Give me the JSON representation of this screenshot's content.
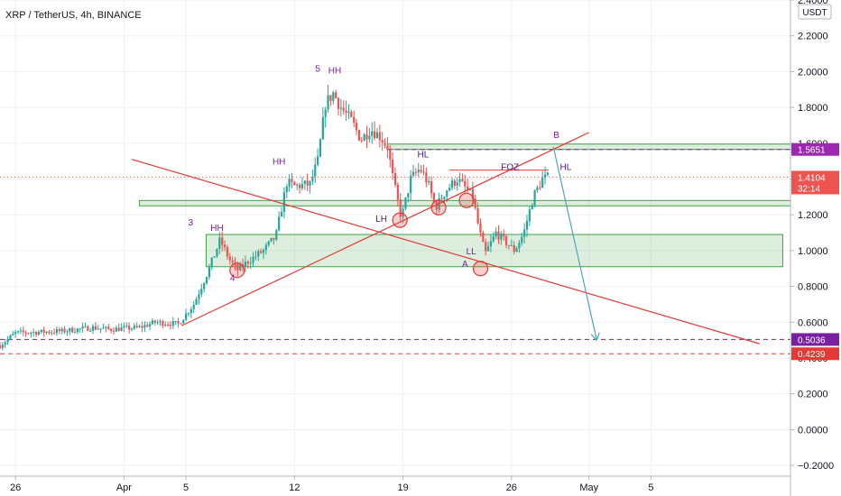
{
  "chart_data": {
    "type": "candlestick",
    "title": "XRP / TetherUS, 4h, BINANCE",
    "currency_label": "USDT",
    "x_axis": {
      "tick_labels": [
        "26",
        "Apr",
        "5",
        "12",
        "19",
        "26",
        "May",
        "5"
      ],
      "tick_days": [
        -6,
        1,
        5,
        12,
        19,
        26,
        31,
        35
      ],
      "range_days": [
        -7,
        44
      ]
    },
    "y_axis": {
      "ylim": [
        -0.26,
        2.4
      ],
      "ticks": [
        -0.2,
        0.0,
        0.2,
        0.4,
        0.6,
        0.8,
        1.0,
        1.2,
        1.4,
        1.6,
        1.8,
        2.0,
        2.2,
        2.4
      ],
      "tick_labels": [
        "−0.2000",
        "0.0000",
        "0.2000",
        "0.4000",
        "0.6000",
        "0.8000",
        "1.0000",
        "1.2000",
        "1.4000",
        "1.6000",
        "1.8000",
        "2.0000",
        "2.2000",
        "2.4000"
      ]
    },
    "price_tags": [
      {
        "label": "1.5651",
        "value": 1.5651,
        "color": "#9c27b0"
      },
      {
        "label": "1.4104",
        "value": 1.4104,
        "color": "#ef5350",
        "sub": "32:14"
      },
      {
        "label": "0.5036",
        "value": 0.5036,
        "color": "#7b1fa2"
      },
      {
        "label": "0.4239",
        "value": 0.4239,
        "color": "#e53935"
      }
    ],
    "price_path": [
      [
        -7.0,
        0.47
      ],
      [
        -6.0,
        0.54
      ],
      [
        -3.0,
        0.55
      ],
      [
        -1.0,
        0.57
      ],
      [
        0.0,
        0.56
      ],
      [
        2.0,
        0.57
      ],
      [
        3.0,
        0.6
      ],
      [
        4.5,
        0.59
      ],
      [
        5.5,
        0.7
      ],
      [
        6.5,
        0.9
      ],
      [
        7.2,
        1.06
      ],
      [
        7.8,
        0.95
      ],
      [
        8.3,
        0.89
      ],
      [
        9.0,
        0.94
      ],
      [
        10.0,
        1.0
      ],
      [
        10.8,
        1.08
      ],
      [
        11.5,
        1.38
      ],
      [
        12.0,
        1.36
      ],
      [
        13.0,
        1.37
      ],
      [
        13.5,
        1.5
      ],
      [
        14.0,
        1.82
      ],
      [
        14.5,
        1.88
      ],
      [
        15.0,
        1.8
      ],
      [
        15.7,
        1.72
      ],
      [
        16.3,
        1.62
      ],
      [
        16.9,
        1.68
      ],
      [
        17.5,
        1.64
      ],
      [
        18.0,
        1.58
      ],
      [
        18.4,
        1.38
      ],
      [
        18.9,
        1.18
      ],
      [
        19.5,
        1.4
      ],
      [
        20.1,
        1.46
      ],
      [
        20.6,
        1.38
      ],
      [
        21.1,
        1.24
      ],
      [
        21.8,
        1.34
      ],
      [
        22.5,
        1.4
      ],
      [
        23.0,
        1.35
      ],
      [
        23.5,
        1.3
      ],
      [
        23.9,
        1.12
      ],
      [
        24.3,
        0.98
      ],
      [
        25.0,
        1.1
      ],
      [
        25.6,
        1.05
      ],
      [
        26.2,
        1.0
      ],
      [
        26.8,
        1.1
      ],
      [
        27.4,
        1.3
      ],
      [
        28.0,
        1.4
      ],
      [
        28.4,
        1.41
      ]
    ],
    "zones": [
      {
        "x": [
          6.3,
          43.5
        ],
        "y": [
          0.91,
          1.09
        ],
        "color": "#43a047"
      },
      {
        "x": [
          2.0,
          44.0
        ],
        "y": [
          1.25,
          1.28
        ],
        "color": "#43a047"
      },
      {
        "x": [
          18.0,
          45.0
        ],
        "y": [
          1.565,
          1.595
        ],
        "color": "#43a047"
      }
    ],
    "trendlines": [
      {
        "from": [
          4.7,
          0.58
        ],
        "to": [
          31.0,
          1.66
        ],
        "color": "#e53935"
      },
      {
        "from": [
          1.5,
          1.51
        ],
        "to": [
          42.0,
          0.48
        ],
        "color": "#e53935"
      },
      {
        "from": [
          28.7,
          1.58
        ],
        "to": [
          31.5,
          0.5
        ],
        "color": "#4fa6bd",
        "arrow": true
      }
    ],
    "horizontal_lines": [
      {
        "y": 0.5036,
        "color": "#7b1fa2",
        "style": "dashed"
      },
      {
        "y": 0.4239,
        "color": "#e53935",
        "style": "dashed"
      },
      {
        "y": 1.5651,
        "color": "#7b1fa2",
        "style": "dashed",
        "x_start": 18.0
      },
      {
        "y": 1.4104,
        "color": "#ef5350",
        "style": "dotted"
      },
      {
        "y": 1.45,
        "color": "#e53935",
        "style": "solid",
        "x_start": 22.0,
        "x_end": 28.4
      }
    ],
    "circles": [
      {
        "x": 8.3,
        "y": 0.89
      },
      {
        "x": 18.8,
        "y": 1.17
      },
      {
        "x": 21.3,
        "y": 1.24
      },
      {
        "x": 23.1,
        "y": 1.28
      },
      {
        "x": 24.0,
        "y": 0.9
      }
    ],
    "annotations": [
      {
        "text": "5",
        "x": 13.5,
        "y": 2.0,
        "color": "#7b1fa2"
      },
      {
        "text": "HH",
        "x": 14.6,
        "y": 1.99,
        "color": "#7b1fa2"
      },
      {
        "text": "HH",
        "x": 11.0,
        "y": 1.48,
        "color": "#7b1fa2"
      },
      {
        "text": "3",
        "x": 5.3,
        "y": 1.14,
        "color": "#7b1fa2"
      },
      {
        "text": "HH",
        "x": 7.0,
        "y": 1.11,
        "color": "#7b1fa2"
      },
      {
        "text": "4",
        "x": 8.0,
        "y": 0.83,
        "color": "#7b1fa2"
      },
      {
        "text": "LH",
        "x": 17.6,
        "y": 1.16,
        "color": "#4a148c"
      },
      {
        "text": "HL",
        "x": 20.3,
        "y": 1.52,
        "color": "#4a148c"
      },
      {
        "text": "FOZ",
        "x": 25.9,
        "y": 1.45,
        "color": "#4a148c"
      },
      {
        "text": "HL",
        "x": 29.5,
        "y": 1.45,
        "color": "#4a148c"
      },
      {
        "text": "B",
        "x": 28.9,
        "y": 1.63,
        "color": "#7b1fa2"
      },
      {
        "text": "LL",
        "x": 23.4,
        "y": 0.98,
        "color": "#7b1fa2"
      },
      {
        "text": "A",
        "x": 23.0,
        "y": 0.91,
        "color": "#7b1fa2"
      }
    ]
  }
}
